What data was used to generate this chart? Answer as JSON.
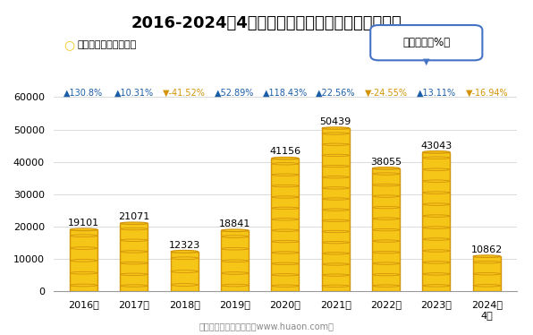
{
  "title": "2016-2024年4月大连商品交易所玉米期货成交金额",
  "years": [
    "2016年",
    "2017年",
    "2018年",
    "2019年",
    "2020年",
    "2021年",
    "2022年",
    "2023年",
    "2024年\n4月"
  ],
  "values": [
    19101,
    21071,
    12323,
    18841,
    41156,
    50439,
    38055,
    43043,
    10862
  ],
  "yoy_labels": [
    "▲130.8%",
    "▲10.31%",
    "▼-41.52%",
    "▲52.89%",
    "▲118.43%",
    "▲22.56%",
    "▼-24.55%",
    "▲13.11%",
    "▼-16.94%"
  ],
  "yoy_colors": [
    "#1a5ea8",
    "#1a5ea8",
    "#d4940a",
    "#1a5ea8",
    "#1a5ea8",
    "#1a5ea8",
    "#d4940a",
    "#1a5ea8",
    "#d4940a"
  ],
  "bar_color": "#f5c518",
  "bar_edge_color": "#d4940a",
  "legend_label": "期货成交金额（亿元）",
  "yoy_box_label": "同比增速（%）",
  "footer": "制图：华经产业研究院（www.huaon.com）",
  "ylim": [
    0,
    60000
  ],
  "yticks": [
    0,
    10000,
    20000,
    30000,
    40000,
    50000,
    60000
  ],
  "bg_color": "#ffffff",
  "title_fontsize": 13,
  "annotation_fontsize": 8,
  "yoy_fontsize": 7
}
